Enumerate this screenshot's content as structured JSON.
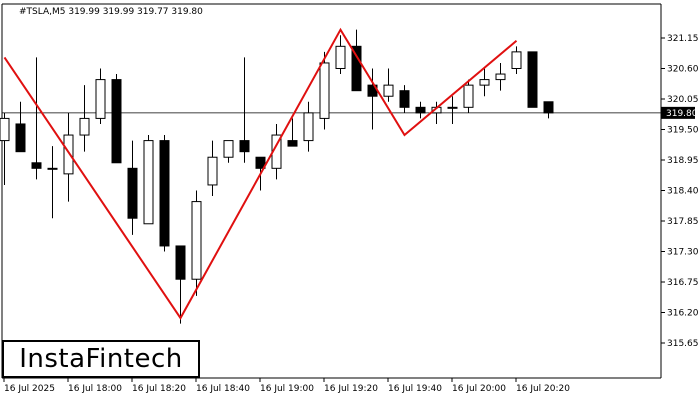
{
  "chart_data": {
    "type": "candlestick",
    "header": "#TSLA,M5  319.99 319.99 319.77 319.80",
    "current_price": "319.80",
    "y_ticks": [
      "321.15",
      "320.60",
      "320.05",
      "319.50",
      "318.95",
      "318.40",
      "317.85",
      "317.30",
      "316.75",
      "316.20",
      "315.65"
    ],
    "x_ticks": [
      "16 Jul 2025",
      "16 Jul 18:00",
      "16 Jul 18:20",
      "16 Jul 18:40",
      "16 Jul 19:00",
      "16 Jul 19:20",
      "16 Jul 19:40",
      "16 Jul 20:00",
      "16 Jul 20:20"
    ],
    "ylim": [
      315.6,
      321.45
    ],
    "candles": [
      {
        "o": 319.3,
        "h": 319.8,
        "l": 318.5,
        "c": 319.7
      },
      {
        "o": 319.6,
        "h": 320.0,
        "l": 319.1,
        "c": 319.1
      },
      {
        "o": 318.9,
        "h": 320.8,
        "l": 318.6,
        "c": 318.8
      },
      {
        "o": 318.8,
        "h": 319.2,
        "l": 317.9,
        "c": 318.8
      },
      {
        "o": 318.7,
        "h": 319.8,
        "l": 318.2,
        "c": 319.4
      },
      {
        "o": 319.4,
        "h": 320.3,
        "l": 319.1,
        "c": 319.7
      },
      {
        "o": 319.7,
        "h": 320.6,
        "l": 319.6,
        "c": 320.4
      },
      {
        "o": 320.4,
        "h": 320.5,
        "l": 318.9,
        "c": 318.9
      },
      {
        "o": 318.8,
        "h": 319.3,
        "l": 317.6,
        "c": 317.9
      },
      {
        "o": 317.8,
        "h": 319.4,
        "l": 317.8,
        "c": 319.3
      },
      {
        "o": 319.3,
        "h": 319.4,
        "l": 317.3,
        "c": 317.4
      },
      {
        "o": 317.4,
        "h": 317.4,
        "l": 316.0,
        "c": 316.8
      },
      {
        "o": 316.8,
        "h": 318.4,
        "l": 316.5,
        "c": 318.2
      },
      {
        "o": 318.5,
        "h": 319.3,
        "l": 318.3,
        "c": 319.0
      },
      {
        "o": 319.0,
        "h": 319.3,
        "l": 318.9,
        "c": 319.3
      },
      {
        "o": 319.3,
        "h": 320.8,
        "l": 318.9,
        "c": 319.1
      },
      {
        "o": 319.0,
        "h": 319.0,
        "l": 318.4,
        "c": 318.8
      },
      {
        "o": 318.8,
        "h": 319.6,
        "l": 318.6,
        "c": 319.4
      },
      {
        "o": 319.3,
        "h": 319.7,
        "l": 319.2,
        "c": 319.2
      },
      {
        "o": 319.3,
        "h": 320.0,
        "l": 319.1,
        "c": 319.8
      },
      {
        "o": 319.7,
        "h": 320.9,
        "l": 319.5,
        "c": 320.7
      },
      {
        "o": 320.6,
        "h": 321.2,
        "l": 320.5,
        "c": 321.0
      },
      {
        "o": 321.0,
        "h": 321.3,
        "l": 320.2,
        "c": 320.2
      },
      {
        "o": 320.3,
        "h": 320.6,
        "l": 319.5,
        "c": 320.1
      },
      {
        "o": 320.1,
        "h": 320.6,
        "l": 320.0,
        "c": 320.3
      },
      {
        "o": 320.2,
        "h": 320.3,
        "l": 319.8,
        "c": 319.9
      },
      {
        "o": 319.9,
        "h": 320.0,
        "l": 319.7,
        "c": 319.8
      },
      {
        "o": 319.8,
        "h": 320.0,
        "l": 319.6,
        "c": 319.9
      },
      {
        "o": 319.9,
        "h": 320.1,
        "l": 319.6,
        "c": 319.9
      },
      {
        "o": 319.9,
        "h": 320.4,
        "l": 319.8,
        "c": 320.3
      },
      {
        "o": 320.3,
        "h": 320.6,
        "l": 320.1,
        "c": 320.4
      },
      {
        "o": 320.4,
        "h": 320.7,
        "l": 320.2,
        "c": 320.5
      },
      {
        "o": 320.6,
        "h": 321.0,
        "l": 320.5,
        "c": 320.9
      },
      {
        "o": 320.9,
        "h": 320.9,
        "l": 319.9,
        "c": 319.9
      },
      {
        "o": 320.0,
        "h": 320.0,
        "l": 319.7,
        "c": 319.8
      }
    ],
    "pattern_line": [
      [
        0,
        320.8
      ],
      [
        11,
        316.1
      ],
      [
        21,
        321.3
      ],
      [
        25,
        319.4
      ],
      [
        32,
        321.1
      ]
    ],
    "logo": "InstaFintech"
  }
}
